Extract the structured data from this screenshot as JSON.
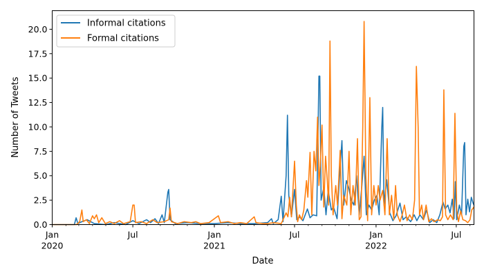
{
  "chart_data": {
    "type": "line",
    "title": "",
    "xlabel": "Date",
    "ylabel": "Number of Tweets",
    "xlim": [
      "2020-01-01",
      "2022-08-10"
    ],
    "ylim": [
      0,
      21.9
    ],
    "grid": false,
    "legend_position": "top-left",
    "y_ticks": [
      0.0,
      2.5,
      5.0,
      7.5,
      10.0,
      12.5,
      15.0,
      17.5,
      20.0
    ],
    "y_tick_labels": [
      "0.0",
      "2.5",
      "5.0",
      "7.5",
      "10.0",
      "12.5",
      "15.0",
      "17.5",
      "20.0"
    ],
    "x_ticks": [
      {
        "date": "2020-01-01",
        "label": "Jan",
        "sublabel": "2020"
      },
      {
        "date": "2020-07-01",
        "label": "Jul",
        "sublabel": ""
      },
      {
        "date": "2021-01-01",
        "label": "Jan",
        "sublabel": "2021"
      },
      {
        "date": "2021-07-01",
        "label": "Jul",
        "sublabel": ""
      },
      {
        "date": "2022-01-01",
        "label": "Jan",
        "sublabel": "2022"
      },
      {
        "date": "2022-07-01",
        "label": "Jul",
        "sublabel": ""
      }
    ],
    "series": [
      {
        "name": "Informal citations",
        "color": "#1f77b4",
        "points": [
          [
            "2020-01-01",
            0
          ],
          [
            "2020-02-20",
            0
          ],
          [
            "2020-02-24",
            0.7
          ],
          [
            "2020-02-28",
            0.1
          ],
          [
            "2020-03-08",
            0.3
          ],
          [
            "2020-03-20",
            0.5
          ],
          [
            "2020-04-05",
            0.1
          ],
          [
            "2020-05-01",
            0
          ],
          [
            "2020-05-20",
            0.2
          ],
          [
            "2020-06-15",
            0
          ],
          [
            "2020-07-01",
            0.4
          ],
          [
            "2020-07-15",
            0.1
          ],
          [
            "2020-08-01",
            0.5
          ],
          [
            "2020-08-10",
            0.2
          ],
          [
            "2020-08-20",
            0.6
          ],
          [
            "2020-08-28",
            0.1
          ],
          [
            "2020-09-05",
            1.0
          ],
          [
            "2020-09-10",
            0.2
          ],
          [
            "2020-09-18",
            3.3
          ],
          [
            "2020-09-20",
            3.6
          ],
          [
            "2020-09-23",
            0.5
          ],
          [
            "2020-10-05",
            0.1
          ],
          [
            "2020-11-01",
            0.2
          ],
          [
            "2020-12-01",
            0.1
          ],
          [
            "2021-01-01",
            0.1
          ],
          [
            "2021-02-01",
            0.2
          ],
          [
            "2021-03-01",
            0.1
          ],
          [
            "2021-04-01",
            0.1
          ],
          [
            "2021-05-01",
            0.2
          ],
          [
            "2021-05-10",
            0.6
          ],
          [
            "2021-05-14",
            0.1
          ],
          [
            "2021-05-25",
            0.5
          ],
          [
            "2021-06-01",
            2.9
          ],
          [
            "2021-06-05",
            0.3
          ],
          [
            "2021-06-12",
            5.0
          ],
          [
            "2021-06-15",
            11.2
          ],
          [
            "2021-06-18",
            3.0
          ],
          [
            "2021-06-24",
            0.8
          ],
          [
            "2021-07-01",
            3.6
          ],
          [
            "2021-07-06",
            0.5
          ],
          [
            "2021-07-12",
            0.8
          ],
          [
            "2021-07-20",
            0.4
          ],
          [
            "2021-07-30",
            1.6
          ],
          [
            "2021-08-05",
            0.7
          ],
          [
            "2021-08-12",
            1.0
          ],
          [
            "2021-08-20",
            0.9
          ],
          [
            "2021-08-25",
            15.2
          ],
          [
            "2021-08-27",
            15.2
          ],
          [
            "2021-08-30",
            2.5
          ],
          [
            "2021-09-05",
            3.8
          ],
          [
            "2021-09-10",
            1.0
          ],
          [
            "2021-09-15",
            3.5
          ],
          [
            "2021-09-22",
            1.5
          ],
          [
            "2021-09-27",
            1.8
          ],
          [
            "2021-10-05",
            0.6
          ],
          [
            "2021-10-12",
            6.0
          ],
          [
            "2021-10-16",
            8.6
          ],
          [
            "2021-10-20",
            2.0
          ],
          [
            "2021-10-26",
            4.5
          ],
          [
            "2021-10-31",
            3.8
          ],
          [
            "2021-11-06",
            2.5
          ],
          [
            "2021-11-12",
            2.0
          ],
          [
            "2021-11-18",
            5.0
          ],
          [
            "2021-11-24",
            1.0
          ],
          [
            "2021-11-30",
            4.0
          ],
          [
            "2021-12-05",
            7.0
          ],
          [
            "2021-12-10",
            1.0
          ],
          [
            "2021-12-16",
            2.0
          ],
          [
            "2021-12-22",
            1.5
          ],
          [
            "2021-12-28",
            2.5
          ],
          [
            "2022-01-03",
            3.0
          ],
          [
            "2022-01-08",
            1.0
          ],
          [
            "2022-01-14",
            10.0
          ],
          [
            "2022-01-16",
            12.0
          ],
          [
            "2022-01-19",
            2.0
          ],
          [
            "2022-01-25",
            4.6
          ],
          [
            "2022-02-01",
            1.2
          ],
          [
            "2022-02-08",
            0.4
          ],
          [
            "2022-02-15",
            0.9
          ],
          [
            "2022-02-24",
            2.2
          ],
          [
            "2022-03-03",
            0.5
          ],
          [
            "2022-03-10",
            0.8
          ],
          [
            "2022-03-20",
            0.3
          ],
          [
            "2022-03-28",
            1.0
          ],
          [
            "2022-04-03",
            0.4
          ],
          [
            "2022-04-10",
            1.0
          ],
          [
            "2022-04-18",
            0.5
          ],
          [
            "2022-04-25",
            1.5
          ],
          [
            "2022-05-02",
            0.2
          ],
          [
            "2022-05-10",
            0.5
          ],
          [
            "2022-05-18",
            0.2
          ],
          [
            "2022-05-25",
            1.0
          ],
          [
            "2022-06-01",
            2.3
          ],
          [
            "2022-06-06",
            1.6
          ],
          [
            "2022-06-12",
            2.0
          ],
          [
            "2022-06-17",
            1.2
          ],
          [
            "2022-06-22",
            2.6
          ],
          [
            "2022-06-26",
            0.6
          ],
          [
            "2022-06-29",
            4.4
          ],
          [
            "2022-07-02",
            0.5
          ],
          [
            "2022-07-08",
            2.0
          ],
          [
            "2022-07-13",
            1.0
          ],
          [
            "2022-07-18",
            8.0
          ],
          [
            "2022-07-20",
            8.4
          ],
          [
            "2022-07-23",
            1.0
          ],
          [
            "2022-07-27",
            2.6
          ],
          [
            "2022-07-31",
            1.3
          ],
          [
            "2022-08-04",
            2.8
          ],
          [
            "2022-08-08",
            2.2
          ],
          [
            "2022-08-10",
            2.0
          ]
        ]
      },
      {
        "name": "Formal citations",
        "color": "#ff7f0e",
        "points": [
          [
            "2020-01-01",
            0
          ],
          [
            "2020-02-25",
            0
          ],
          [
            "2020-03-03",
            0.3
          ],
          [
            "2020-03-08",
            1.5
          ],
          [
            "2020-03-11",
            0.3
          ],
          [
            "2020-03-18",
            0.5
          ],
          [
            "2020-03-25",
            0.1
          ],
          [
            "2020-04-01",
            0.9
          ],
          [
            "2020-04-05",
            0.6
          ],
          [
            "2020-04-10",
            1.0
          ],
          [
            "2020-04-15",
            0.2
          ],
          [
            "2020-04-22",
            0.7
          ],
          [
            "2020-04-30",
            0.1
          ],
          [
            "2020-05-10",
            0.3
          ],
          [
            "2020-05-20",
            0.1
          ],
          [
            "2020-06-01",
            0.4
          ],
          [
            "2020-06-10",
            0.1
          ],
          [
            "2020-06-25",
            0.3
          ],
          [
            "2020-07-01",
            2.0
          ],
          [
            "2020-07-04",
            2.0
          ],
          [
            "2020-07-07",
            0.2
          ],
          [
            "2020-07-20",
            0.3
          ],
          [
            "2020-08-01",
            0.1
          ],
          [
            "2020-08-15",
            0.5
          ],
          [
            "2020-08-25",
            0.2
          ],
          [
            "2020-09-10",
            0.3
          ],
          [
            "2020-09-20",
            0.5
          ],
          [
            "2020-09-23",
            1.7
          ],
          [
            "2020-09-26",
            0.3
          ],
          [
            "2020-10-10",
            0.1
          ],
          [
            "2020-10-25",
            0.3
          ],
          [
            "2020-11-10",
            0.2
          ],
          [
            "2020-11-20",
            0.3
          ],
          [
            "2020-12-01",
            0.1
          ],
          [
            "2020-12-20",
            0.2
          ],
          [
            "2021-01-10",
            0.9
          ],
          [
            "2021-01-15",
            0.2
          ],
          [
            "2021-02-01",
            0.3
          ],
          [
            "2021-02-15",
            0.1
          ],
          [
            "2021-03-01",
            0.2
          ],
          [
            "2021-03-15",
            0.1
          ],
          [
            "2021-04-01",
            0.8
          ],
          [
            "2021-04-05",
            0.2
          ],
          [
            "2021-04-20",
            0.1
          ],
          [
            "2021-05-01",
            0.1
          ],
          [
            "2021-05-15",
            0.2
          ],
          [
            "2021-06-01",
            0.1
          ],
          [
            "2021-06-12",
            1.2
          ],
          [
            "2021-06-16",
            0.8
          ],
          [
            "2021-06-20",
            2.8
          ],
          [
            "2021-06-24",
            0.8
          ],
          [
            "2021-07-01",
            6.5
          ],
          [
            "2021-07-05",
            2.0
          ],
          [
            "2021-07-08",
            0.3
          ],
          [
            "2021-07-12",
            1.0
          ],
          [
            "2021-07-17",
            0.5
          ],
          [
            "2021-07-22",
            1.5
          ],
          [
            "2021-07-28",
            4.5
          ],
          [
            "2021-07-31",
            2.8
          ],
          [
            "2021-08-05",
            7.4
          ],
          [
            "2021-08-09",
            1.0
          ],
          [
            "2021-08-14",
            7.5
          ],
          [
            "2021-08-18",
            5.5
          ],
          [
            "2021-08-22",
            11.0
          ],
          [
            "2021-08-25",
            4.0
          ],
          [
            "2021-08-28",
            6.0
          ],
          [
            "2021-09-01",
            10.2
          ],
          [
            "2021-09-05",
            1.8
          ],
          [
            "2021-09-09",
            7.0
          ],
          [
            "2021-09-13",
            4.5
          ],
          [
            "2021-09-16",
            2.0
          ],
          [
            "2021-09-19",
            18.8
          ],
          [
            "2021-09-22",
            5.0
          ],
          [
            "2021-09-26",
            1.0
          ],
          [
            "2021-10-02",
            4.0
          ],
          [
            "2021-10-06",
            2.0
          ],
          [
            "2021-10-12",
            7.6
          ],
          [
            "2021-10-16",
            0.6
          ],
          [
            "2021-10-20",
            3.0
          ],
          [
            "2021-10-27",
            2.0
          ],
          [
            "2021-11-01",
            7.5
          ],
          [
            "2021-11-05",
            1.0
          ],
          [
            "2021-11-10",
            4.0
          ],
          [
            "2021-11-15",
            2.0
          ],
          [
            "2021-11-20",
            8.8
          ],
          [
            "2021-11-24",
            0.5
          ],
          [
            "2021-11-28",
            0.8
          ],
          [
            "2021-12-02",
            10.0
          ],
          [
            "2021-12-05",
            20.8
          ],
          [
            "2021-12-09",
            5.0
          ],
          [
            "2021-12-13",
            0.4
          ],
          [
            "2021-12-18",
            13.0
          ],
          [
            "2021-12-22",
            1.0
          ],
          [
            "2021-12-27",
            4.0
          ],
          [
            "2022-01-01",
            2.0
          ],
          [
            "2022-01-06",
            4.0
          ],
          [
            "2022-01-10",
            2.5
          ],
          [
            "2022-01-16",
            3.5
          ],
          [
            "2022-01-21",
            1.0
          ],
          [
            "2022-01-26",
            8.8
          ],
          [
            "2022-01-31",
            1.0
          ],
          [
            "2022-02-05",
            3.0
          ],
          [
            "2022-02-10",
            0.5
          ],
          [
            "2022-02-14",
            4.0
          ],
          [
            "2022-02-18",
            1.0
          ],
          [
            "2022-02-24",
            0.3
          ],
          [
            "2022-03-01",
            1.0
          ],
          [
            "2022-03-06",
            2.0
          ],
          [
            "2022-03-12",
            0.4
          ],
          [
            "2022-03-18",
            1.0
          ],
          [
            "2022-03-24",
            0.5
          ],
          [
            "2022-03-29",
            2.5
          ],
          [
            "2022-04-02",
            16.2
          ],
          [
            "2022-04-06",
            10.0
          ],
          [
            "2022-04-09",
            1.0
          ],
          [
            "2022-04-14",
            2.0
          ],
          [
            "2022-04-18",
            0.5
          ],
          [
            "2022-04-24",
            2.0
          ],
          [
            "2022-04-30",
            0.3
          ],
          [
            "2022-05-06",
            0.6
          ],
          [
            "2022-05-12",
            0.3
          ],
          [
            "2022-05-20",
            0.5
          ],
          [
            "2022-05-26",
            0.4
          ],
          [
            "2022-05-31",
            0.8
          ],
          [
            "2022-06-03",
            13.8
          ],
          [
            "2022-06-07",
            1.0
          ],
          [
            "2022-06-12",
            0.5
          ],
          [
            "2022-06-18",
            1.0
          ],
          [
            "2022-06-24",
            0.5
          ],
          [
            "2022-06-28",
            11.4
          ],
          [
            "2022-07-02",
            1.5
          ],
          [
            "2022-07-06",
            0.3
          ],
          [
            "2022-07-11",
            1.4
          ],
          [
            "2022-07-16",
            0.5
          ],
          [
            "2022-07-22",
            0.4
          ],
          [
            "2022-07-27",
            0.2
          ],
          [
            "2022-08-01",
            0.5
          ],
          [
            "2022-08-05",
            1.5
          ],
          [
            "2022-08-10",
            1.8
          ]
        ]
      }
    ]
  }
}
